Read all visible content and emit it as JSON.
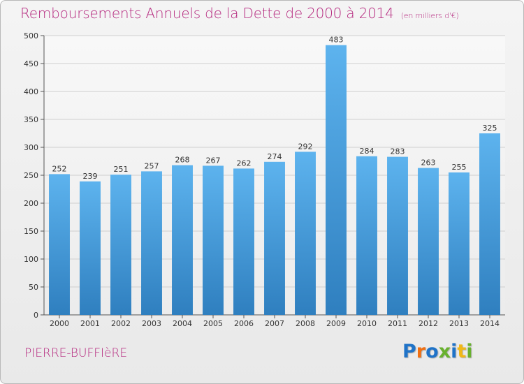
{
  "header": {
    "title": "Remboursements Annuels de la Dette de 2000 à 2014",
    "subtitle": "(en milliers d'€)"
  },
  "footer": {
    "commune": "PIERRE-BUFFIèRE",
    "logo_text": "Proxiti"
  },
  "colors": {
    "title": "#b5277e",
    "bar_top": "#5db3ee",
    "bar_bottom": "#2f7fbf",
    "grid": "#cfcfcf",
    "axis": "#555555"
  },
  "chart_data": {
    "type": "bar",
    "title": "Remboursements Annuels de la Dette de 2000 à 2014",
    "subtitle": "(en milliers d'€)",
    "xlabel": "",
    "ylabel": "",
    "categories": [
      "2000",
      "2001",
      "2002",
      "2003",
      "2004",
      "2005",
      "2006",
      "2007",
      "2008",
      "2009",
      "2010",
      "2011",
      "2012",
      "2013",
      "2014"
    ],
    "values": [
      252,
      239,
      251,
      257,
      268,
      267,
      262,
      274,
      292,
      483,
      284,
      283,
      263,
      255,
      325
    ],
    "ylim": [
      0,
      500
    ],
    "yticks": [
      0,
      50,
      100,
      150,
      200,
      250,
      300,
      350,
      400,
      450,
      500
    ],
    "grid": true,
    "legend": "none",
    "data_labels": true
  }
}
